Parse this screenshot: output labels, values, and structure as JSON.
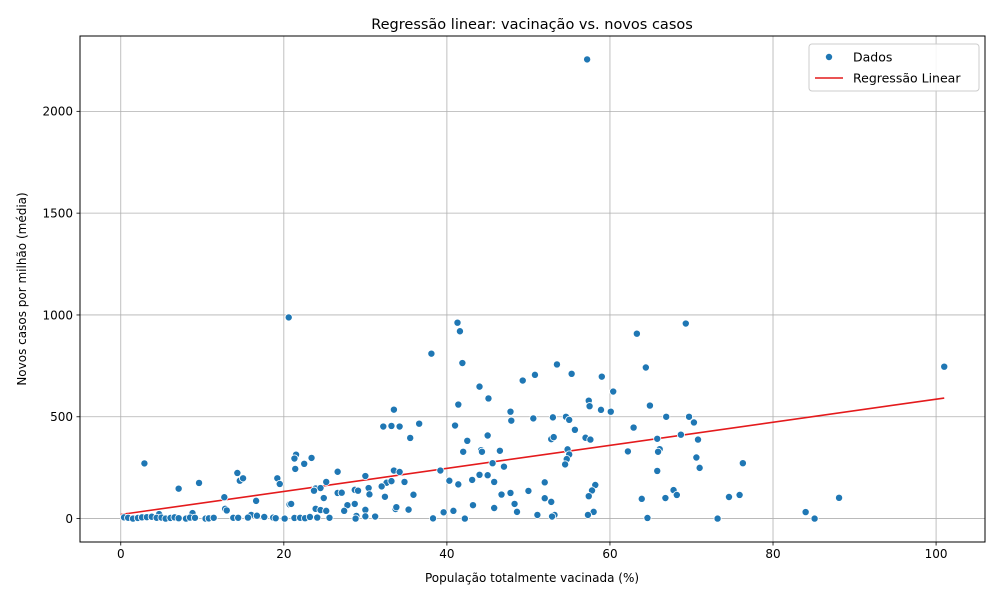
{
  "chart_data": {
    "type": "scatter",
    "title": "Regressão linear: vacinação vs. novos casos",
    "xlabel": "População totalmente vacinada (%)",
    "ylabel": "Novos casos por milhão (média)",
    "xlim": [
      -5,
      106
    ],
    "ylim": [
      -115,
      2370
    ],
    "xticks": [
      0,
      20,
      40,
      60,
      80,
      100
    ],
    "yticks": [
      0,
      500,
      1000,
      1500,
      2000
    ],
    "grid": true,
    "legend_position": "top-right",
    "colors": {
      "points": "#1f77b4",
      "regression": "#e41a1c"
    },
    "series": [
      {
        "name": "Dados",
        "kind": "scatter",
        "points": [
          [
            57.2,
            2255
          ],
          [
            20.6,
            988
          ],
          [
            41.3,
            962
          ],
          [
            41.6,
            920
          ],
          [
            69.3,
            958
          ],
          [
            63.3,
            908
          ],
          [
            38.1,
            810
          ],
          [
            41.9,
            764
          ],
          [
            53.5,
            757
          ],
          [
            64.4,
            742
          ],
          [
            101.0,
            746
          ],
          [
            55.3,
            711
          ],
          [
            50.8,
            706
          ],
          [
            59.0,
            697
          ],
          [
            49.3,
            678
          ],
          [
            44.0,
            648
          ],
          [
            60.4,
            624
          ],
          [
            45.1,
            590
          ],
          [
            57.4,
            579
          ],
          [
            41.4,
            560
          ],
          [
            64.9,
            555
          ],
          [
            57.5,
            552
          ],
          [
            58.9,
            534
          ],
          [
            33.5,
            535
          ],
          [
            47.8,
            525
          ],
          [
            60.1,
            525
          ],
          [
            50.6,
            492
          ],
          [
            53.0,
            497
          ],
          [
            54.6,
            500
          ],
          [
            66.9,
            500
          ],
          [
            55.0,
            485
          ],
          [
            69.7,
            500
          ],
          [
            70.3,
            472
          ],
          [
            47.9,
            481
          ],
          [
            36.6,
            466
          ],
          [
            32.2,
            452
          ],
          [
            33.2,
            455
          ],
          [
            34.2,
            452
          ],
          [
            41.0,
            457
          ],
          [
            62.9,
            447
          ],
          [
            55.7,
            436
          ],
          [
            68.7,
            412
          ],
          [
            45.0,
            408
          ],
          [
            35.5,
            396
          ],
          [
            52.8,
            390
          ],
          [
            53.1,
            400
          ],
          [
            57.0,
            397
          ],
          [
            57.6,
            388
          ],
          [
            42.5,
            382
          ],
          [
            65.8,
            392
          ],
          [
            70.8,
            388
          ],
          [
            44.2,
            336
          ],
          [
            44.3,
            328
          ],
          [
            46.5,
            333
          ],
          [
            42.0,
            328
          ],
          [
            54.8,
            340
          ],
          [
            62.2,
            330
          ],
          [
            66.1,
            341
          ],
          [
            65.9,
            328
          ],
          [
            55.0,
            315
          ],
          [
            54.7,
            292
          ],
          [
            70.6,
            300
          ],
          [
            54.5,
            266
          ],
          [
            21.5,
            314
          ],
          [
            21.3,
            295
          ],
          [
            23.4,
            298
          ],
          [
            2.9,
            271
          ],
          [
            22.5,
            269
          ],
          [
            21.4,
            244
          ],
          [
            45.6,
            272
          ],
          [
            47.0,
            255
          ],
          [
            65.8,
            234
          ],
          [
            71.0,
            249
          ],
          [
            76.3,
            272
          ],
          [
            14.3,
            224
          ],
          [
            26.6,
            230
          ],
          [
            33.5,
            236
          ],
          [
            39.2,
            236
          ],
          [
            34.2,
            229
          ],
          [
            44.0,
            215
          ],
          [
            45.0,
            213
          ],
          [
            30.0,
            209
          ],
          [
            14.6,
            186
          ],
          [
            15.0,
            198
          ],
          [
            19.2,
            198
          ],
          [
            19.5,
            170
          ],
          [
            9.6,
            175
          ],
          [
            25.2,
            180
          ],
          [
            32.6,
            176
          ],
          [
            33.2,
            184
          ],
          [
            34.8,
            180
          ],
          [
            40.3,
            186
          ],
          [
            43.1,
            190
          ],
          [
            45.8,
            180
          ],
          [
            52.0,
            178
          ],
          [
            58.2,
            165
          ],
          [
            7.1,
            147
          ],
          [
            23.9,
            148
          ],
          [
            24.5,
            150
          ],
          [
            23.7,
            137
          ],
          [
            28.7,
            141
          ],
          [
            29.1,
            137
          ],
          [
            30.4,
            150
          ],
          [
            32.0,
            158
          ],
          [
            41.4,
            168
          ],
          [
            57.8,
            138
          ],
          [
            67.8,
            140
          ],
          [
            12.7,
            105
          ],
          [
            16.6,
            87
          ],
          [
            24.9,
            101
          ],
          [
            26.6,
            126
          ],
          [
            27.1,
            127
          ],
          [
            30.5,
            119
          ],
          [
            32.4,
            107
          ],
          [
            35.9,
            117
          ],
          [
            46.7,
            118
          ],
          [
            47.8,
            126
          ],
          [
            50.0,
            136
          ],
          [
            52.0,
            100
          ],
          [
            52.8,
            82
          ],
          [
            57.4,
            110
          ],
          [
            63.9,
            97
          ],
          [
            66.8,
            101
          ],
          [
            68.2,
            116
          ],
          [
            74.6,
            106
          ],
          [
            75.9,
            116
          ],
          [
            88.1,
            102
          ],
          [
            20.7,
            70
          ],
          [
            20.9,
            72
          ],
          [
            27.8,
            66
          ],
          [
            28.7,
            72
          ],
          [
            43.2,
            66
          ],
          [
            48.3,
            72
          ],
          [
            12.8,
            48
          ],
          [
            13.0,
            40
          ],
          [
            23.9,
            48
          ],
          [
            24.5,
            42
          ],
          [
            25.2,
            38
          ],
          [
            27.4,
            38
          ],
          [
            30.0,
            43
          ],
          [
            33.7,
            47
          ],
          [
            33.8,
            56
          ],
          [
            35.3,
            44
          ],
          [
            40.8,
            38
          ],
          [
            45.8,
            52
          ],
          [
            48.6,
            33
          ],
          [
            58.0,
            33
          ],
          [
            84.0,
            32
          ],
          [
            4.7,
            22
          ],
          [
            8.8,
            27
          ],
          [
            16.0,
            18
          ],
          [
            16.7,
            14
          ],
          [
            18.7,
            5
          ],
          [
            28.9,
            13
          ],
          [
            30.0,
            11
          ],
          [
            31.2,
            10
          ],
          [
            39.6,
            31
          ],
          [
            51.1,
            18
          ],
          [
            53.2,
            18
          ],
          [
            57.3,
            18
          ],
          [
            0.4,
            6
          ],
          [
            0.9,
            4
          ],
          [
            1.5,
            0
          ],
          [
            2.1,
            3
          ],
          [
            2.6,
            6
          ],
          [
            3.2,
            7
          ],
          [
            3.8,
            9
          ],
          [
            4.4,
            4
          ],
          [
            5.0,
            5
          ],
          [
            5.5,
            0
          ],
          [
            6.1,
            3
          ],
          [
            6.6,
            6
          ],
          [
            7.1,
            2
          ],
          [
            8.0,
            0
          ],
          [
            8.5,
            5
          ],
          [
            9.1,
            4
          ],
          [
            10.4,
            0
          ],
          [
            10.8,
            1
          ],
          [
            11.4,
            4
          ],
          [
            13.8,
            4
          ],
          [
            14.4,
            4
          ],
          [
            15.6,
            5
          ],
          [
            17.6,
            8
          ],
          [
            19.0,
            2
          ],
          [
            20.1,
            0
          ],
          [
            21.3,
            3
          ],
          [
            22.0,
            4
          ],
          [
            22.6,
            2
          ],
          [
            23.2,
            8
          ],
          [
            24.1,
            5
          ],
          [
            25.6,
            4
          ],
          [
            28.8,
            0
          ],
          [
            38.3,
            1
          ],
          [
            42.2,
            0
          ],
          [
            52.9,
            10
          ],
          [
            64.6,
            3
          ],
          [
            73.2,
            0
          ],
          [
            85.1,
            0
          ]
        ]
      },
      {
        "name": "Regressão Linear",
        "kind": "line",
        "points": [
          [
            0,
            20
          ],
          [
            101.0,
            592
          ]
        ]
      }
    ]
  }
}
